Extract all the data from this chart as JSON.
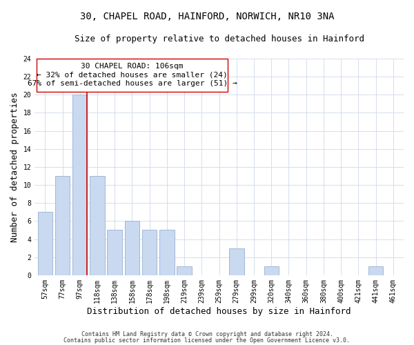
{
  "title": "30, CHAPEL ROAD, HAINFORD, NORWICH, NR10 3NA",
  "subtitle": "Size of property relative to detached houses in Hainford",
  "xlabel": "Distribution of detached houses by size in Hainford",
  "ylabel": "Number of detached properties",
  "bin_labels": [
    "57sqm",
    "77sqm",
    "97sqm",
    "118sqm",
    "138sqm",
    "158sqm",
    "178sqm",
    "198sqm",
    "219sqm",
    "239sqm",
    "259sqm",
    "279sqm",
    "299sqm",
    "320sqm",
    "340sqm",
    "360sqm",
    "380sqm",
    "400sqm",
    "421sqm",
    "441sqm",
    "461sqm"
  ],
  "bar_heights": [
    7,
    11,
    20,
    11,
    5,
    6,
    5,
    5,
    1,
    0,
    0,
    3,
    0,
    1,
    0,
    0,
    0,
    0,
    0,
    1,
    0
  ],
  "bar_color": "#c9d9f0",
  "bar_edge_color": "#a0b8d8",
  "highlight_line_color": "#cc0000",
  "annotation_title": "30 CHAPEL ROAD: 106sqm",
  "annotation_line1": "← 32% of detached houses are smaller (24)",
  "annotation_line2": "67% of semi-detached houses are larger (51) →",
  "annotation_box_color": "#ffffff",
  "annotation_box_edge": "#cc0000",
  "ylim": [
    0,
    24
  ],
  "yticks": [
    0,
    2,
    4,
    6,
    8,
    10,
    12,
    14,
    16,
    18,
    20,
    22,
    24
  ],
  "footer1": "Contains HM Land Registry data © Crown copyright and database right 2024.",
  "footer2": "Contains public sector information licensed under the Open Government Licence v3.0.",
  "title_fontsize": 10,
  "subtitle_fontsize": 9,
  "axis_label_fontsize": 9,
  "tick_fontsize": 7,
  "annotation_fontsize": 8,
  "footer_fontsize": 6
}
